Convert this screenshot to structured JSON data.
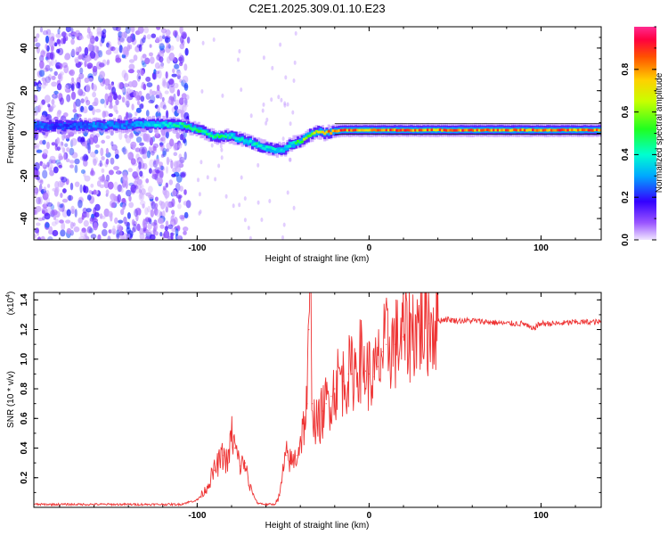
{
  "title": "C2E1.2025.309.01.10.E23",
  "chart_data": [
    {
      "type": "heatmap",
      "title": "C2E1.2025.309.01.10.E23",
      "xlabel": "Height of straight line (km)",
      "ylabel": "Frequency (Hz)",
      "xlim": [
        -195,
        135
      ],
      "ylim": [
        -50,
        50
      ],
      "x_ticks": [
        -100,
        0,
        100
      ],
      "x_tick_labels": [
        "-100",
        "0",
        "100"
      ],
      "y_ticks": [
        -40,
        -20,
        0,
        20,
        40
      ],
      "y_tick_labels": [
        "-40",
        "-20",
        "0",
        "20",
        "40"
      ],
      "colorbar": {
        "label": "Normalized spectral amplitude",
        "range": [
          0,
          1
        ],
        "ticks": [
          0.0,
          0.2,
          0.4,
          0.6,
          0.8
        ],
        "tick_labels": [
          "0.0",
          "0.2",
          "0.4",
          "0.6",
          "0.8"
        ]
      },
      "ridge": {
        "x": [
          -195,
          -180,
          -160,
          -140,
          -125,
          -110,
          -100,
          -90,
          -80,
          -70,
          -60,
          -50,
          -45,
          -40,
          -35,
          -30,
          -25,
          -20,
          -15,
          -10,
          -5,
          0,
          20,
          40,
          60,
          80,
          100,
          120,
          135
        ],
        "y": [
          3.5,
          3.5,
          3.5,
          4,
          4.5,
          4,
          2,
          -1.5,
          -1.5,
          -4,
          -7,
          -8,
          -5,
          -4,
          -1,
          1,
          0,
          1,
          1.5,
          1.5,
          1.5,
          1.5,
          1.5,
          1.5,
          1.5,
          1.5,
          1.5,
          1.5,
          1.5
        ],
        "amplitude": [
          0.3,
          0.25,
          0.3,
          0.3,
          0.4,
          0.5,
          0.55,
          0.55,
          0.45,
          0.45,
          0.45,
          0.4,
          0.45,
          0.6,
          0.7,
          0.75,
          0.85,
          0.95,
          0.95,
          0.95,
          0.9,
          0.95,
          0.95,
          0.9,
          0.95,
          0.9,
          0.95,
          0.95,
          0.95
        ]
      },
      "noise_region_x": [
        -195,
        -105
      ],
      "reference_lines_y": [
        -0.5,
        4.5
      ]
    },
    {
      "type": "line",
      "xlabel": "Height of straight line (km)",
      "ylabel": "SNR (10 * v/v)",
      "y_scale_label": "(x10",
      "y_scale_exponent": "4",
      "y_scale_close": ")",
      "xlim": [
        -195,
        135
      ],
      "ylim": [
        0,
        1.45
      ],
      "x_ticks": [
        -100,
        0,
        100
      ],
      "x_tick_labels": [
        "-100",
        "0",
        "100"
      ],
      "y_ticks": [
        0.2,
        0.4,
        0.6,
        0.8,
        1.0,
        1.2,
        1.4
      ],
      "y_tick_labels": [
        "0.2",
        "0.4",
        "0.6",
        "0.8",
        "1.0",
        "1.2",
        "1.4"
      ],
      "series": [
        {
          "name": "SNR",
          "color": "#ee3333",
          "x": [
            -195,
            -170,
            -150,
            -130,
            -110,
            -100,
            -95,
            -90,
            -85,
            -82,
            -80,
            -78,
            -75,
            -72,
            -70,
            -65,
            -60,
            -55,
            -52,
            -50,
            -48,
            -45,
            -42,
            -40,
            -38,
            -36,
            -35,
            -34,
            -33,
            -32,
            -30,
            -27,
            -25,
            -22,
            -20,
            -17,
            -15,
            -12,
            -10,
            -8,
            -5,
            -2,
            0,
            3,
            5,
            8,
            10,
            15,
            20,
            25,
            30,
            35,
            40,
            45,
            50,
            60,
            70,
            80,
            90,
            95,
            97,
            100,
            110,
            120,
            135
          ],
          "y": [
            0.02,
            0.02,
            0.02,
            0.02,
            0.02,
            0.05,
            0.12,
            0.25,
            0.35,
            0.3,
            0.5,
            0.4,
            0.28,
            0.3,
            0.15,
            0.03,
            0.02,
            0.02,
            0.08,
            0.25,
            0.35,
            0.3,
            0.35,
            0.45,
            0.55,
            0.7,
            1.2,
            1.45,
            0.7,
            0.6,
            0.55,
            0.65,
            0.7,
            0.75,
            0.8,
            0.9,
            0.85,
            0.9,
            0.9,
            0.95,
            1.0,
            0.92,
            0.9,
            0.88,
            0.95,
            1.05,
            1.1,
            1.1,
            1.15,
            1.2,
            1.23,
            1.24,
            1.26,
            1.27,
            1.26,
            1.26,
            1.25,
            1.24,
            1.24,
            1.2,
            1.22,
            1.24,
            1.24,
            1.25,
            1.25
          ]
        }
      ]
    }
  ]
}
